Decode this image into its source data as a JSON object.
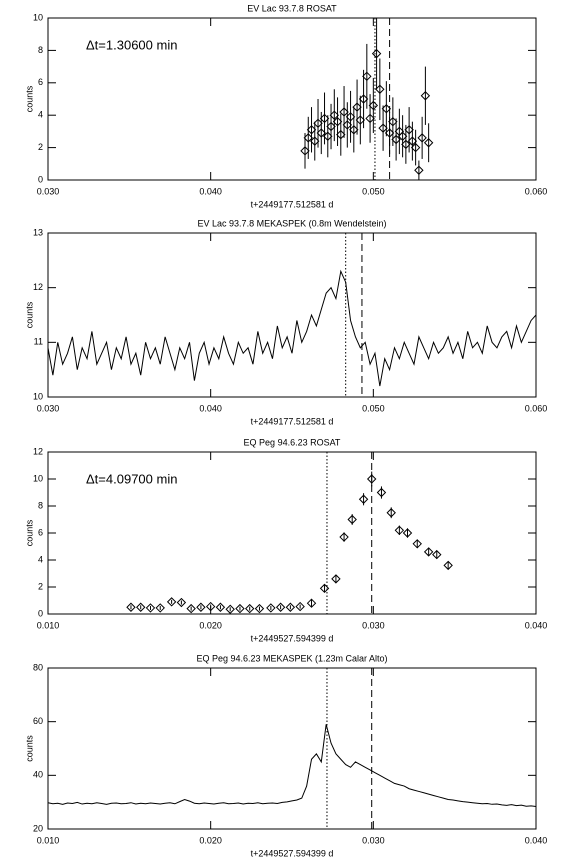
{
  "chart_data": [
    {
      "type": "errorbar",
      "title": "EV Lac 93.7.8 ROSAT",
      "xlabel": "t+2449177.512581 d",
      "ylabel": "counts",
      "annotation": "Δt=1.30600 min",
      "marker": "diamond",
      "color": "#000000",
      "x": [
        0.0458,
        0.046,
        0.0462,
        0.0464,
        0.0466,
        0.0468,
        0.047,
        0.0472,
        0.0474,
        0.0476,
        0.0478,
        0.048,
        0.0482,
        0.0484,
        0.0486,
        0.0488,
        0.049,
        0.0492,
        0.0494,
        0.0496,
        0.0498,
        0.05,
        0.0502,
        0.0504,
        0.0506,
        0.0508,
        0.051,
        0.0512,
        0.0514,
        0.0516,
        0.0518,
        0.052,
        0.0522,
        0.0524,
        0.0526,
        0.0528,
        0.053,
        0.0532,
        0.0534
      ],
      "values": [
        1.8,
        2.6,
        3.1,
        2.4,
        3.5,
        2.9,
        3.8,
        2.7,
        3.3,
        4.0,
        3.6,
        2.8,
        4.2,
        3.4,
        3.9,
        3.1,
        4.5,
        3.7,
        5.0,
        6.4,
        3.8,
        4.6,
        7.8,
        5.6,
        3.2,
        4.4,
        2.9,
        3.6,
        2.5,
        3.0,
        2.7,
        2.2,
        3.1,
        2.4,
        2.0,
        0.6,
        2.6,
        5.2,
        2.3
      ],
      "errors": [
        1.1,
        1.3,
        1.4,
        1.2,
        1.5,
        1.3,
        1.6,
        1.3,
        1.4,
        1.6,
        1.5,
        1.3,
        1.6,
        1.4,
        1.6,
        1.4,
        1.7,
        1.5,
        1.8,
        2.0,
        1.5,
        1.7,
        2.2,
        1.9,
        1.4,
        1.7,
        1.3,
        1.5,
        1.3,
        1.4,
        1.3,
        1.2,
        1.4,
        1.2,
        1.1,
        0.6,
        1.3,
        1.8,
        1.2
      ],
      "xlim": [
        0.03,
        0.06
      ],
      "xticks": [
        {
          "value": 0.03,
          "label": "0.030"
        },
        {
          "value": 0.04,
          "label": "0.040"
        },
        {
          "value": 0.05,
          "label": "0.050"
        },
        {
          "value": 0.06,
          "label": "0.060"
        }
      ],
      "ylim": [
        0,
        10
      ],
      "yticks": [
        0,
        2,
        4,
        6,
        8,
        10
      ],
      "vlines": [
        {
          "x": 0.0501,
          "style": "dotted"
        },
        {
          "x": 0.051,
          "style": "dashed"
        }
      ]
    },
    {
      "type": "line",
      "title": "EV Lac 93.7.8 MEKASPEK (0.8m Wendelstein)",
      "xlabel": "t+2449177.512581 d",
      "ylabel": "counts",
      "color": "#000000",
      "x": [
        0.03,
        0.0303,
        0.0306,
        0.0309,
        0.0312,
        0.0315,
        0.0318,
        0.0321,
        0.0324,
        0.0327,
        0.033,
        0.0333,
        0.0336,
        0.0339,
        0.0342,
        0.0345,
        0.0348,
        0.0351,
        0.0354,
        0.0357,
        0.036,
        0.0363,
        0.0366,
        0.0369,
        0.0372,
        0.0375,
        0.0378,
        0.0381,
        0.0384,
        0.0387,
        0.039,
        0.0393,
        0.0396,
        0.0399,
        0.0402,
        0.0405,
        0.0408,
        0.0411,
        0.0414,
        0.0417,
        0.042,
        0.0423,
        0.0426,
        0.0429,
        0.0432,
        0.0435,
        0.0438,
        0.0441,
        0.0444,
        0.0447,
        0.045,
        0.0453,
        0.0456,
        0.0459,
        0.0462,
        0.0465,
        0.0468,
        0.0471,
        0.0474,
        0.0477,
        0.048,
        0.0483,
        0.0486,
        0.0489,
        0.0492,
        0.0495,
        0.0498,
        0.0501,
        0.0504,
        0.0507,
        0.051,
        0.0513,
        0.0516,
        0.0519,
        0.0522,
        0.0525,
        0.0528,
        0.0531,
        0.0534,
        0.0537,
        0.054,
        0.0543,
        0.0546,
        0.0549,
        0.0552,
        0.0555,
        0.0558,
        0.0561,
        0.0564,
        0.0567,
        0.057,
        0.0573,
        0.0576,
        0.0579,
        0.0582,
        0.0585,
        0.0588,
        0.0591,
        0.0594,
        0.0597,
        0.06
      ],
      "values": [
        10.9,
        10.4,
        11.0,
        10.6,
        10.8,
        11.1,
        10.5,
        10.9,
        10.7,
        11.2,
        10.6,
        10.8,
        11.0,
        10.5,
        10.9,
        10.7,
        11.1,
        10.6,
        10.8,
        10.4,
        11.0,
        10.7,
        10.9,
        10.6,
        11.1,
        10.8,
        10.5,
        10.9,
        10.7,
        11.0,
        10.3,
        10.8,
        11.0,
        10.6,
        10.9,
        10.7,
        11.1,
        10.8,
        10.6,
        11.0,
        10.8,
        10.9,
        10.6,
        11.2,
        10.8,
        11.0,
        10.7,
        11.3,
        10.9,
        11.1,
        10.8,
        11.4,
        11.0,
        11.2,
        11.5,
        11.3,
        11.6,
        11.9,
        12.0,
        11.8,
        12.3,
        12.1,
        11.4,
        11.1,
        10.9,
        11.0,
        10.6,
        10.8,
        10.2,
        10.7,
        10.5,
        10.9,
        10.7,
        11.0,
        10.8,
        10.6,
        11.1,
        10.9,
        10.7,
        11.0,
        10.8,
        10.9,
        11.1,
        10.8,
        11.0,
        10.7,
        11.2,
        10.9,
        11.0,
        10.8,
        11.3,
        11.0,
        10.9,
        11.1,
        11.2,
        10.9,
        11.3,
        11.0,
        11.2,
        11.4,
        11.5
      ],
      "xlim": [
        0.03,
        0.06
      ],
      "xticks": [
        {
          "value": 0.03,
          "label": "0.030"
        },
        {
          "value": 0.04,
          "label": "0.040"
        },
        {
          "value": 0.05,
          "label": "0.050"
        },
        {
          "value": 0.06,
          "label": "0.060"
        }
      ],
      "ylim": [
        10,
        13
      ],
      "yticks": [
        10,
        11,
        12,
        13
      ],
      "vlines": [
        {
          "x": 0.0483,
          "style": "dotted"
        },
        {
          "x": 0.0493,
          "style": "dashed"
        }
      ]
    },
    {
      "type": "errorbar",
      "title": "EQ Peg 94.6.23 ROSAT",
      "xlabel": "t+2449527.594399 d",
      "ylabel": "counts",
      "annotation": "Δt=4.09700 min",
      "marker": "diamond",
      "color": "#000000",
      "x": [
        0.0151,
        0.0157,
        0.0163,
        0.0169,
        0.0176,
        0.0182,
        0.0188,
        0.0194,
        0.02,
        0.0206,
        0.0212,
        0.0218,
        0.0224,
        0.023,
        0.0237,
        0.0243,
        0.0249,
        0.0255,
        0.0262,
        0.027,
        0.0277,
        0.0282,
        0.0287,
        0.0294,
        0.0299,
        0.0305,
        0.0311,
        0.0316,
        0.0321,
        0.0327,
        0.0334,
        0.0339,
        0.0346
      ],
      "values": [
        0.5,
        0.5,
        0.45,
        0.45,
        0.9,
        0.85,
        0.4,
        0.5,
        0.55,
        0.5,
        0.35,
        0.4,
        0.4,
        0.4,
        0.45,
        0.5,
        0.5,
        0.55,
        0.8,
        1.9,
        2.6,
        5.7,
        7.0,
        8.5,
        10.0,
        9.0,
        7.5,
        6.2,
        6.0,
        5.2,
        4.6,
        4.4,
        3.6
      ],
      "errors": [
        0.15,
        0.15,
        0.15,
        0.15,
        0.15,
        0.15,
        0.15,
        0.15,
        0.15,
        0.15,
        0.15,
        0.15,
        0.15,
        0.15,
        0.15,
        0.15,
        0.15,
        0.15,
        0.25,
        0.3,
        0.3,
        0.35,
        0.4,
        0.45,
        0.55,
        0.45,
        0.4,
        0.35,
        0.35,
        0.3,
        0.3,
        0.3,
        0.25
      ],
      "xlim": [
        0.01,
        0.04
      ],
      "xticks": [
        {
          "value": 0.01,
          "label": "0.010"
        },
        {
          "value": 0.02,
          "label": "0.020"
        },
        {
          "value": 0.03,
          "label": "0.030"
        },
        {
          "value": 0.04,
          "label": "0.040"
        }
      ],
      "ylim": [
        0,
        12
      ],
      "yticks": [
        0,
        2,
        4,
        6,
        8,
        10,
        12
      ],
      "vlines": [
        {
          "x": 0.02715,
          "style": "dotted"
        },
        {
          "x": 0.0299,
          "style": "dashed"
        }
      ]
    },
    {
      "type": "line",
      "title": "EQ Peg 94.6.23 MEKASPEK (1.23m Calar Alto)",
      "xlabel": "t+2449527.594399 d",
      "ylabel": "counts",
      "color": "#000000",
      "x": [
        0.01,
        0.0103,
        0.0106,
        0.0109,
        0.0112,
        0.0115,
        0.0118,
        0.0121,
        0.0124,
        0.0127,
        0.013,
        0.0133,
        0.0136,
        0.0139,
        0.0142,
        0.0145,
        0.0148,
        0.0151,
        0.0154,
        0.0157,
        0.016,
        0.0163,
        0.0166,
        0.0169,
        0.0172,
        0.0175,
        0.0178,
        0.0181,
        0.0184,
        0.0187,
        0.019,
        0.0193,
        0.0196,
        0.0199,
        0.0202,
        0.0205,
        0.0208,
        0.0211,
        0.0214,
        0.0217,
        0.022,
        0.0223,
        0.0226,
        0.0229,
        0.0232,
        0.0235,
        0.0238,
        0.0241,
        0.0244,
        0.0247,
        0.025,
        0.0253,
        0.0256,
        0.0259,
        0.0262,
        0.0265,
        0.0268,
        0.0271,
        0.0274,
        0.0277,
        0.028,
        0.0283,
        0.0286,
        0.0289,
        0.0292,
        0.0295,
        0.0298,
        0.0301,
        0.0304,
        0.0307,
        0.031,
        0.0313,
        0.0316,
        0.0319,
        0.0322,
        0.0325,
        0.0328,
        0.0331,
        0.0334,
        0.0337,
        0.034,
        0.0343,
        0.0346,
        0.0349,
        0.0352,
        0.0355,
        0.0358,
        0.0361,
        0.0364,
        0.0367,
        0.037,
        0.0373,
        0.0376,
        0.0379,
        0.0382,
        0.0385,
        0.0388,
        0.0391,
        0.0394,
        0.0397,
        0.04
      ],
      "values": [
        29.8,
        29.4,
        29.6,
        29.2,
        29.7,
        29.5,
        29.9,
        29.3,
        29.6,
        29.4,
        29.8,
        29.5,
        29.2,
        29.6,
        29.7,
        29.4,
        29.5,
        29.8,
        29.3,
        29.6,
        29.4,
        29.7,
        29.5,
        29.3,
        29.6,
        29.8,
        29.4,
        30.2,
        31.0,
        30.4,
        29.6,
        29.4,
        29.7,
        29.5,
        29.3,
        29.6,
        29.8,
        29.4,
        29.5,
        29.7,
        29.3,
        29.6,
        29.5,
        29.8,
        29.4,
        29.6,
        29.7,
        29.5,
        29.9,
        30.1,
        30.5,
        30.8,
        31.5,
        36,
        46,
        48,
        45,
        59,
        52,
        48,
        46,
        44,
        43,
        45,
        44,
        43,
        42,
        41,
        40,
        39,
        38,
        37,
        36.5,
        36,
        35,
        34.5,
        34,
        33.5,
        33,
        32.5,
        32,
        31.5,
        31,
        30.8,
        30.5,
        30.2,
        30,
        29.8,
        29.6,
        29.4,
        29.5,
        29.2,
        29.3,
        29.0,
        28.8,
        29.1,
        28.7,
        28.9,
        28.5,
        28.6,
        28.4
      ],
      "xlim": [
        0.01,
        0.04
      ],
      "xticks": [
        {
          "value": 0.01,
          "label": "0.010"
        },
        {
          "value": 0.02,
          "label": "0.020"
        },
        {
          "value": 0.03,
          "label": "0.030"
        },
        {
          "value": 0.04,
          "label": "0.040"
        }
      ],
      "ylim": [
        20,
        80
      ],
      "yticks": [
        20,
        40,
        60,
        80
      ],
      "vlines": [
        {
          "x": 0.02715,
          "style": "dotted"
        },
        {
          "x": 0.0299,
          "style": "dashed"
        }
      ]
    }
  ]
}
